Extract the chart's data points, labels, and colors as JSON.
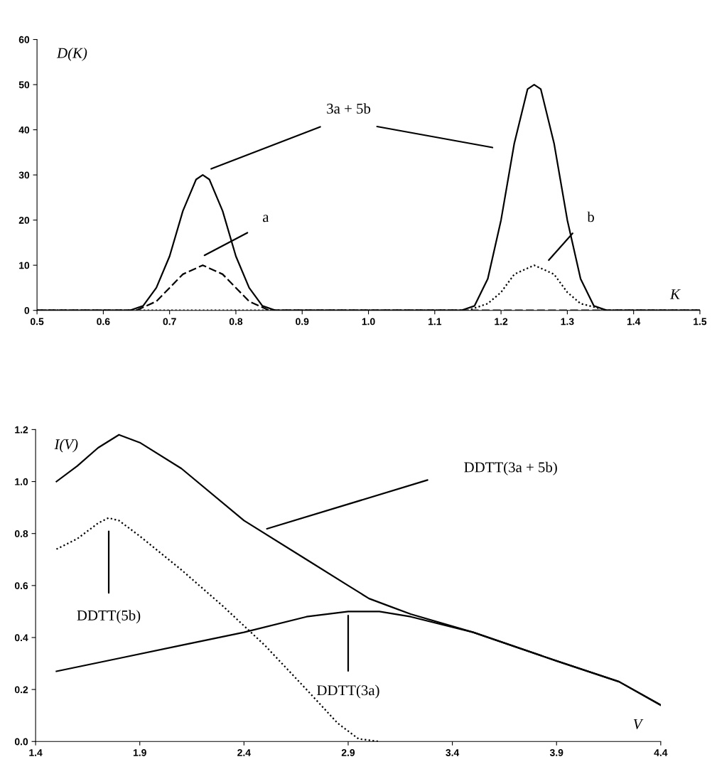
{
  "chart_data": [
    {
      "type": "line",
      "xlabel": "K",
      "ylabel": "D(K)",
      "xlim": [
        0.5,
        1.5
      ],
      "ylim": [
        0,
        60
      ],
      "xticks": [
        0.5,
        0.6,
        0.7,
        0.8,
        0.9,
        {
          "value": 1.0,
          "label": "1.0"
        },
        1.1,
        1.2,
        1.3,
        1.4,
        1.5
      ],
      "yticks": [
        0,
        10,
        20,
        30,
        40,
        50,
        60
      ],
      "grid": false,
      "legend": false,
      "annotations": [
        "3a + 5b",
        "a",
        "b"
      ],
      "series": [
        {
          "color": "#000000",
          "line_style": "solid",
          "x": [
            0.5,
            0.64,
            0.66,
            0.68,
            0.7,
            0.72,
            0.74,
            0.75,
            0.76,
            0.78,
            0.8,
            0.82,
            0.84,
            0.86,
            1.14,
            1.16,
            1.18,
            1.2,
            1.22,
            1.24,
            1.25,
            1.26,
            1.28,
            1.3,
            1.32,
            1.34,
            1.36,
            1.5
          ],
          "values": [
            0,
            0,
            1,
            5,
            12,
            22,
            29,
            30,
            29,
            22,
            12,
            5,
            1,
            0,
            0,
            1,
            7,
            20,
            37,
            49,
            50,
            49,
            37,
            20,
            7,
            1,
            0,
            0
          ]
        },
        {
          "color": "#000000",
          "line_style": "dashed",
          "x": [
            0.5,
            0.65,
            0.68,
            0.7,
            0.72,
            0.75,
            0.78,
            0.8,
            0.82,
            0.85,
            1.5
          ],
          "values": [
            0,
            0,
            2,
            5,
            8,
            10,
            8,
            5,
            2,
            0,
            0
          ]
        },
        {
          "color": "#000000",
          "line_style": "dotted",
          "x": [
            0.5,
            1.15,
            1.18,
            1.2,
            1.22,
            1.25,
            1.28,
            1.3,
            1.32,
            1.36,
            1.5
          ],
          "values": [
            0,
            0,
            1.5,
            4,
            8,
            10,
            8,
            4,
            1.5,
            0,
            0
          ]
        }
      ]
    },
    {
      "type": "line",
      "xlabel": "V",
      "ylabel": "I(V)",
      "xlim": [
        1.4,
        4.4
      ],
      "ylim": [
        0,
        1.2
      ],
      "xticks": [
        1.4,
        1.9,
        2.4,
        2.9,
        3.4,
        3.9,
        4.4
      ],
      "yticks": [
        {
          "value": 0,
          "label": "0.0"
        },
        0.2,
        0.4,
        0.6,
        0.8,
        {
          "value": 1.0,
          "label": "1.0"
        },
        1.2
      ],
      "grid": false,
      "legend": false,
      "annotations": [
        "DDTT(3a + 5b)",
        "DDTT(5b)",
        "DDTT(3a)"
      ],
      "series": [
        {
          "color": "#000000",
          "line_style": "solid",
          "x": [
            1.5,
            1.6,
            1.7,
            1.8,
            1.9,
            2.1,
            2.4,
            2.7,
            2.9,
            3.0,
            3.1,
            3.2,
            3.5,
            3.9,
            4.2,
            4.4
          ],
          "values": [
            1.0,
            1.06,
            1.13,
            1.18,
            1.15,
            1.05,
            0.85,
            0.7,
            0.6,
            0.55,
            0.52,
            0.49,
            0.42,
            0.31,
            0.23,
            0.14
          ]
        },
        {
          "color": "#000000",
          "line_style": "dotted",
          "x": [
            1.5,
            1.6,
            1.7,
            1.75,
            1.8,
            1.9,
            2.1,
            2.3,
            2.5,
            2.7,
            2.85,
            2.95,
            3.05
          ],
          "values": [
            0.74,
            0.78,
            0.84,
            0.86,
            0.85,
            0.79,
            0.66,
            0.52,
            0.37,
            0.2,
            0.07,
            0.01,
            0
          ]
        },
        {
          "color": "#000000",
          "line_style": "solid",
          "x": [
            1.5,
            1.8,
            2.1,
            2.4,
            2.7,
            2.9,
            3.05,
            3.2,
            3.5,
            3.9,
            4.2,
            4.4
          ],
          "values": [
            0.27,
            0.32,
            0.37,
            0.42,
            0.48,
            0.5,
            0.5,
            0.48,
            0.42,
            0.31,
            0.23,
            0.14
          ]
        }
      ]
    }
  ]
}
